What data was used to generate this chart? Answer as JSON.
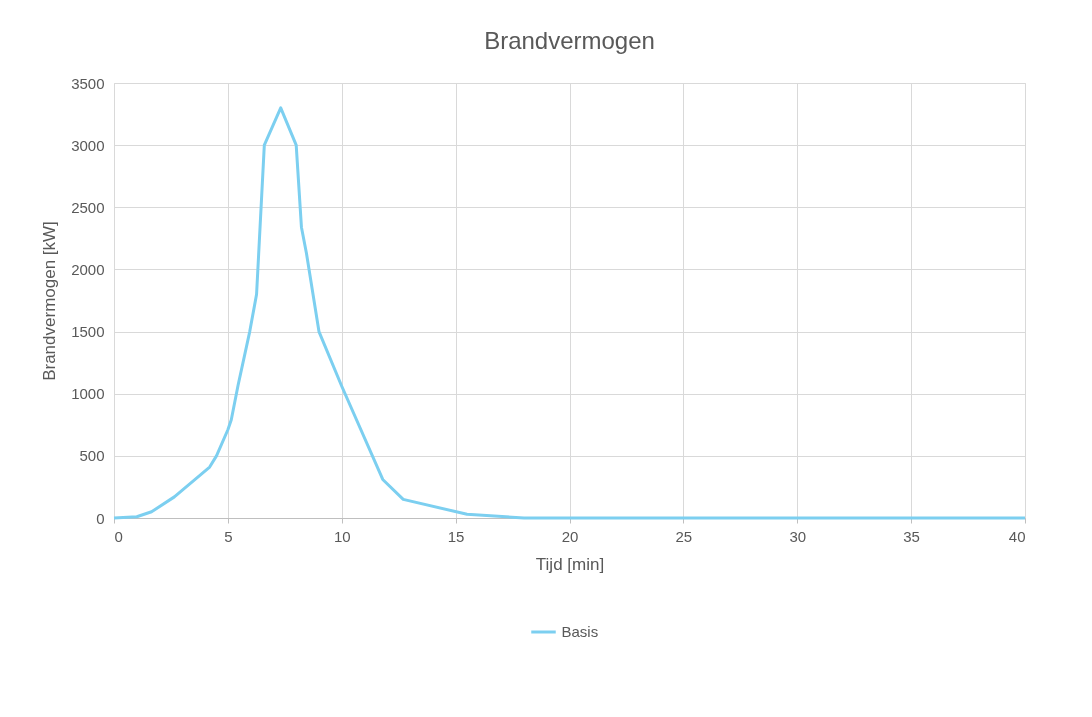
{
  "chart_data": {
    "type": "line",
    "title": "Brandvermogen",
    "xlabel": "Tijd [min]",
    "ylabel": "Brandvermogen [kW]",
    "x": [
      0,
      1.0,
      1.65,
      2.65,
      4.2,
      4.5,
      5.0,
      5.15,
      5.45,
      5.96,
      6.26,
      6.6,
      7.32,
      8.0,
      8.23,
      8.45,
      9.0,
      10.0,
      11.8,
      12.7,
      15.5,
      18,
      40
    ],
    "series": [
      {
        "name": "Basis",
        "color": "#7ccff0",
        "values": [
          0,
          10,
          50,
          170,
          410,
          500,
          710,
          790,
          1070,
          1500,
          1800,
          3000,
          3300,
          3000,
          2340,
          2130,
          1500,
          1060,
          310,
          150,
          30,
          0,
          0
        ]
      }
    ],
    "xlim": [
      0,
      40
    ],
    "xticks": [
      0,
      5,
      10,
      15,
      20,
      25,
      30,
      35,
      40
    ],
    "ylim": [
      0,
      3500
    ],
    "yticks": [
      0,
      500,
      1000,
      1500,
      2000,
      2500,
      3000,
      3500
    ],
    "grid": true,
    "legend": "bottom",
    "marker": "none",
    "line_style": "solid"
  }
}
